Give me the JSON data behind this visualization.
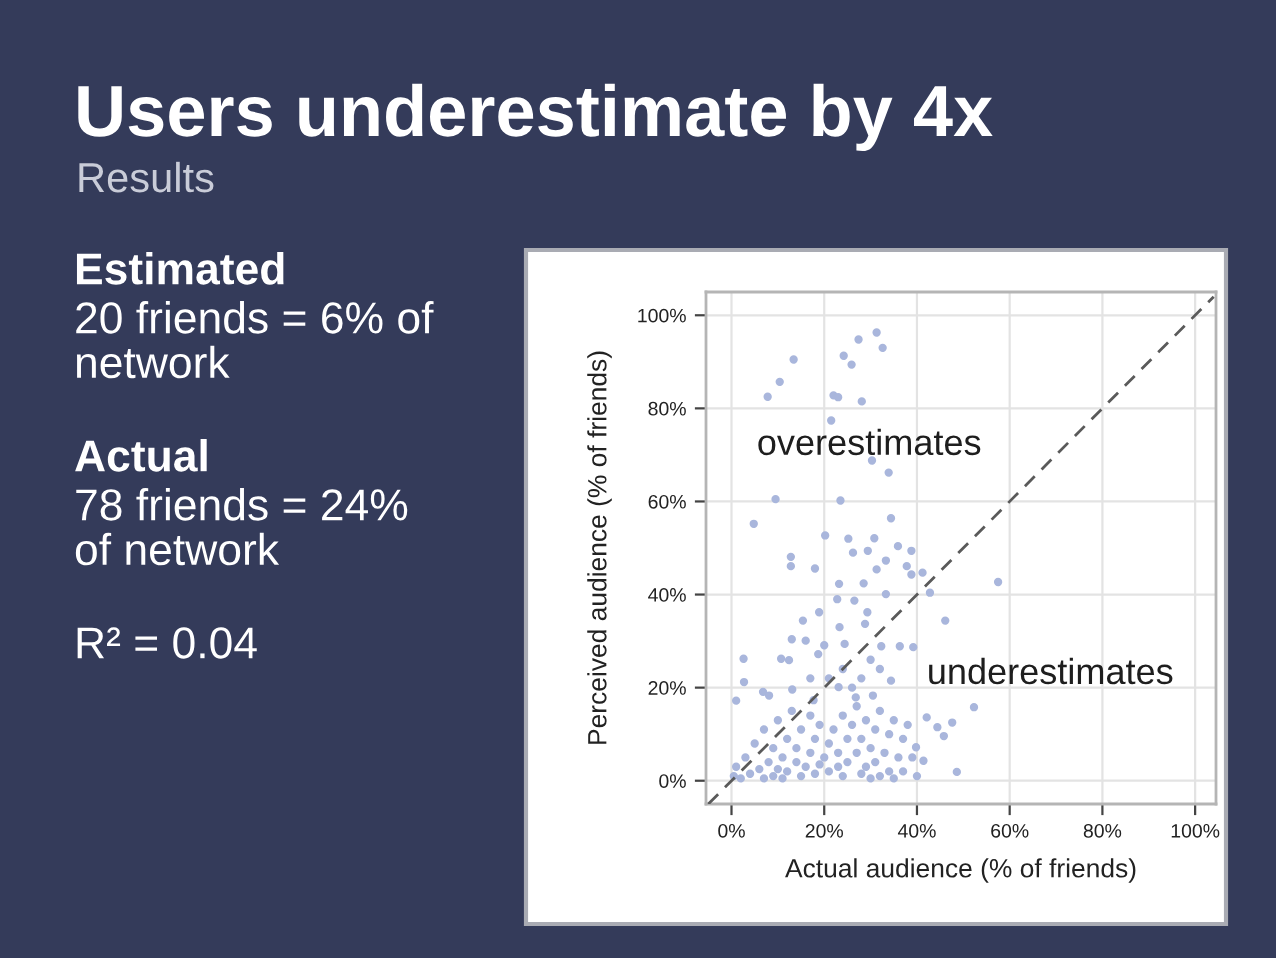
{
  "chart_data": {
    "type": "scatter",
    "title": "Users underestimate by 4x",
    "subtitle": "Results",
    "xlabel": "Actual audience (% of friends)",
    "ylabel": "Perceived audience (% of friends)",
    "annotations": [
      "Estimated",
      "20 friends = 6% of network",
      "Actual",
      "78 friends = 24% of network",
      "R² = 0.04",
      "overestimates",
      "underestimates"
    ],
    "xlim": [
      -5.5,
      104.5
    ],
    "ylim": [
      -5,
      105
    ],
    "xticks": [
      {
        "value": 0,
        "label": "0%"
      },
      {
        "value": 20,
        "label": "20%"
      },
      {
        "value": 40,
        "label": "40%"
      },
      {
        "value": 60,
        "label": "60%"
      },
      {
        "value": 80,
        "label": "80%"
      },
      {
        "value": 100,
        "label": "100%"
      }
    ],
    "yticks": [
      {
        "value": 0,
        "label": "0%"
      },
      {
        "value": 20,
        "label": "20%"
      },
      {
        "value": 40,
        "label": "40%"
      },
      {
        "value": 60,
        "label": "60%"
      },
      {
        "value": 80,
        "label": "80%"
      },
      {
        "value": 100,
        "label": "100%"
      }
    ],
    "grid": true,
    "marker": "circle",
    "series": [
      {
        "color": "#a9b6dc",
        "x": [
          27.4,
          31.3,
          32.6,
          13.4,
          24.2,
          25.9,
          10.4,
          22.0,
          23.0,
          28.1,
          7.8,
          21.5,
          30.3,
          33.9,
          9.5,
          23.5,
          4.8,
          20.2,
          25.2,
          30.8,
          34.4,
          26.2,
          29.4,
          38.8,
          12.8,
          12.8,
          18.0,
          35.9,
          33.3,
          37.8,
          41.2,
          57.5,
          38.8,
          31.3,
          23.2,
          28.5,
          26.5,
          22.8,
          33.3,
          42.8,
          46.1,
          29.3,
          18.9,
          15.4,
          23.3,
          28.8,
          16.0,
          13.0,
          20.0,
          32.3,
          36.3,
          2.6,
          10.7,
          12.4,
          18.7,
          24.4,
          39.2,
          1.0,
          2.7,
          6.8,
          8.1,
          13.1,
          17.7,
          23.1,
          26.8,
          30.5,
          34.4,
          45.8,
          47.6,
          52.3,
          48.6,
          44.4,
          42.1,
          41.4,
          39.8,
          0.5,
          1,
          2,
          3,
          4,
          5,
          6,
          7,
          7,
          8,
          9,
          9,
          10,
          10,
          11,
          11,
          12,
          12,
          13,
          14,
          14,
          15,
          15,
          16,
          17,
          17,
          18,
          18,
          19,
          19,
          20,
          21,
          21,
          22,
          23,
          23,
          24,
          24,
          25,
          25,
          26,
          27,
          27,
          28,
          28,
          29,
          29,
          30,
          30,
          31,
          31,
          32,
          32,
          33,
          34,
          34,
          35,
          35,
          36,
          37,
          37,
          38,
          39,
          40,
          28,
          24,
          21,
          32,
          17,
          30,
          26
        ],
        "values": [
          94.8,
          96.3,
          93.0,
          90.5,
          91.3,
          89.4,
          85.7,
          82.8,
          82.4,
          81.5,
          82.5,
          77.4,
          68.8,
          66.2,
          60.5,
          60.2,
          55.2,
          52.7,
          52.0,
          52.1,
          56.4,
          49.0,
          49.4,
          49.4,
          48.1,
          46.1,
          45.6,
          50.4,
          47.3,
          46.1,
          44.7,
          42.7,
          44.3,
          45.4,
          42.3,
          42.4,
          38.7,
          39.0,
          40.1,
          40.4,
          34.4,
          36.2,
          36.2,
          34.4,
          33.0,
          33.7,
          30.1,
          30.4,
          29.1,
          28.9,
          28.9,
          26.2,
          26.2,
          25.9,
          27.2,
          29.4,
          28.7,
          17.2,
          21.2,
          19.1,
          18.3,
          19.6,
          17.3,
          20.1,
          17.9,
          18.3,
          21.5,
          9.6,
          12.5,
          15.8,
          1.9,
          11.5,
          13.6,
          4.3,
          7.2,
          1,
          3,
          0.5,
          5,
          1.5,
          8,
          2.5,
          0.5,
          11,
          4,
          1,
          7,
          2.5,
          13,
          0.5,
          5,
          9,
          2,
          15,
          4,
          7,
          1,
          11,
          3,
          6,
          14,
          1.5,
          9,
          3.5,
          12,
          5,
          2,
          8,
          11,
          3,
          6,
          1,
          14,
          4,
          9,
          12,
          6,
          16,
          1.5,
          9,
          3,
          13,
          0.5,
          7,
          4,
          11,
          1,
          15,
          6,
          2,
          10,
          0.5,
          13,
          5,
          2,
          9,
          12,
          5,
          1,
          22,
          24,
          22,
          24,
          22,
          26,
          20
        ]
      },
      {
        "type": "line",
        "color": "#5a5a5a",
        "line_style": "dashed",
        "marker": "none",
        "x": [
          -5,
          104
        ],
        "values": [
          -5,
          104
        ]
      }
    ]
  }
}
